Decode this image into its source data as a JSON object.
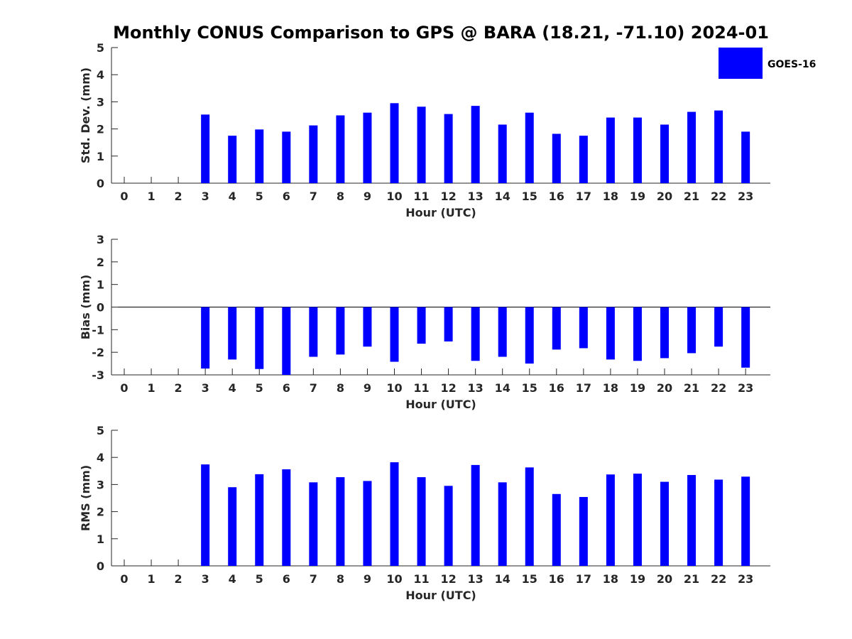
{
  "title": "Monthly CONUS Comparison to GPS @ BARA (18.21, -71.10) 2024-01",
  "legend": {
    "label": "GOES-16",
    "color": "#0000ff"
  },
  "chart_data": [
    {
      "type": "bar",
      "title": "Monthly CONUS Comparison to GPS @ BARA (18.21, -71.10) 2024-01",
      "xlabel": "Hour (UTC)",
      "ylabel": "Std. Dev. (mm)",
      "ylim": [
        0,
        5
      ],
      "yticks": [
        0,
        1,
        2,
        3,
        4,
        5
      ],
      "categories": [
        "0",
        "1",
        "2",
        "3",
        "4",
        "5",
        "6",
        "7",
        "8",
        "9",
        "10",
        "11",
        "12",
        "13",
        "14",
        "15",
        "16",
        "17",
        "18",
        "19",
        "20",
        "21",
        "22",
        "23"
      ],
      "series": [
        {
          "name": "GOES-16",
          "color": "#0000ff",
          "values": [
            null,
            null,
            null,
            2.53,
            1.75,
            1.98,
            1.9,
            2.13,
            2.5,
            2.6,
            2.95,
            2.82,
            2.55,
            2.85,
            2.16,
            2.6,
            1.82,
            1.75,
            2.42,
            2.42,
            2.16,
            2.63,
            2.68,
            1.9
          ]
        }
      ]
    },
    {
      "type": "bar",
      "xlabel": "Hour (UTC)",
      "ylabel": "Bias (mm)",
      "ylim": [
        -3,
        3
      ],
      "yticks": [
        -3,
        -2,
        -1,
        0,
        1,
        2,
        3
      ],
      "categories": [
        "0",
        "1",
        "2",
        "3",
        "4",
        "5",
        "6",
        "7",
        "8",
        "9",
        "10",
        "11",
        "12",
        "13",
        "14",
        "15",
        "16",
        "17",
        "18",
        "19",
        "20",
        "21",
        "22",
        "23"
      ],
      "series": [
        {
          "name": "GOES-16",
          "color": "#0000ff",
          "values": [
            null,
            null,
            null,
            -2.72,
            -2.32,
            -2.74,
            -3.0,
            -2.2,
            -2.1,
            -1.75,
            -2.42,
            -1.62,
            -1.52,
            -2.38,
            -2.2,
            -2.5,
            -1.88,
            -1.82,
            -2.32,
            -2.38,
            -2.26,
            -2.04,
            -1.75,
            -2.68
          ]
        }
      ]
    },
    {
      "type": "bar",
      "xlabel": "Hour (UTC)",
      "ylabel": "RMS (mm)",
      "ylim": [
        0,
        5
      ],
      "yticks": [
        0,
        1,
        2,
        3,
        4,
        5
      ],
      "categories": [
        "0",
        "1",
        "2",
        "3",
        "4",
        "5",
        "6",
        "7",
        "8",
        "9",
        "10",
        "11",
        "12",
        "13",
        "14",
        "15",
        "16",
        "17",
        "18",
        "19",
        "20",
        "21",
        "22",
        "23"
      ],
      "series": [
        {
          "name": "GOES-16",
          "color": "#0000ff",
          "values": [
            null,
            null,
            null,
            3.74,
            2.9,
            3.38,
            3.56,
            3.08,
            3.27,
            3.13,
            3.82,
            3.27,
            2.95,
            3.72,
            3.08,
            3.63,
            2.65,
            2.54,
            3.37,
            3.4,
            3.1,
            3.35,
            3.18,
            3.29
          ]
        }
      ]
    }
  ]
}
